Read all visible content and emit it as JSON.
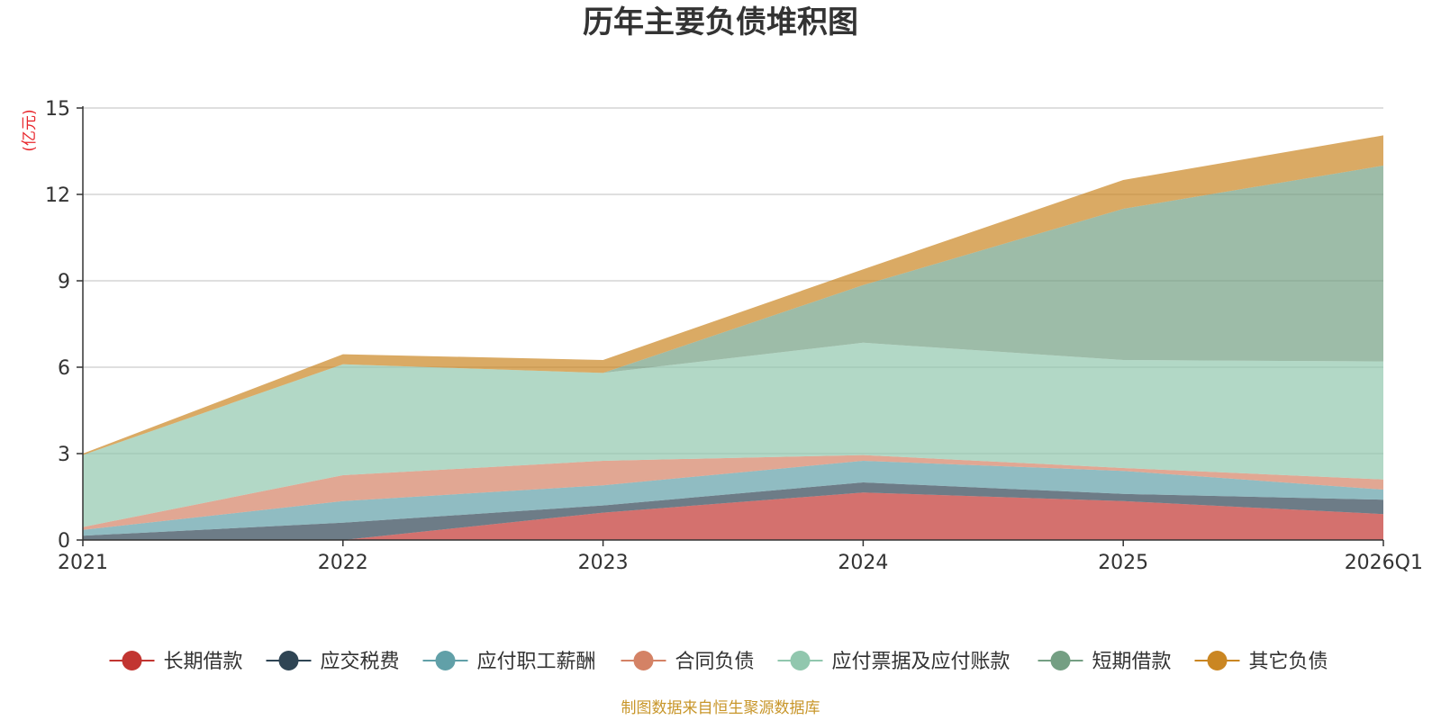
{
  "chart_data": {
    "type": "area",
    "stacked": true,
    "title": "历年主要负债堆积图",
    "unit_label": "(亿元)",
    "categories": [
      "2021",
      "2022",
      "2023",
      "2024",
      "2025",
      "2026Q1"
    ],
    "ylim": [
      0,
      15
    ],
    "yticks": [
      "0",
      "3",
      "6",
      "9",
      "12",
      "15"
    ],
    "grid": true,
    "legend_position": "bottom",
    "series": [
      {
        "name": "长期借款",
        "color": "#c23531",
        "values": [
          0,
          0,
          0.95,
          1.65,
          1.35,
          0.9
        ]
      },
      {
        "name": "应交税费",
        "color": "#2f4554",
        "values": [
          0.15,
          0.6,
          0.25,
          0.35,
          0.25,
          0.5
        ]
      },
      {
        "name": "应付职工薪酬",
        "color": "#61a0a8",
        "values": [
          0.2,
          0.75,
          0.7,
          0.75,
          0.8,
          0.35
        ]
      },
      {
        "name": "合同负债",
        "color": "#d48265",
        "values": [
          0.1,
          0.9,
          0.85,
          0.2,
          0.1,
          0.35
        ]
      },
      {
        "name": "应付票据及应付账款",
        "color": "#91c7ae",
        "values": [
          2.5,
          3.85,
          3.05,
          3.9,
          3.75,
          4.1
        ]
      },
      {
        "name": "短期借款",
        "color": "#749f83",
        "values": [
          0,
          0,
          0,
          2.0,
          5.25,
          6.8
        ]
      },
      {
        "name": "其它负债",
        "color": "#ca8622",
        "values": [
          0.05,
          0.35,
          0.45,
          0.55,
          1.0,
          1.05
        ]
      }
    ]
  },
  "footer": {
    "source": "制图数据来自恒生聚源数据库"
  }
}
